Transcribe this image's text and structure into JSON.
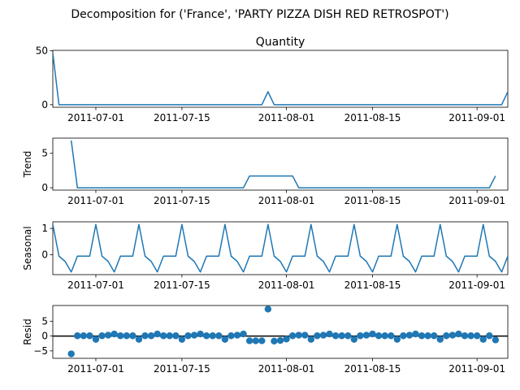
{
  "figure": {
    "title": "Decomposition for ('France', 'PARTY PIZZA DISH RED RETROSPOT')"
  },
  "chart_data": [
    {
      "type": "line",
      "key": "observed",
      "title": "Quantity",
      "ylabel": "",
      "color": "#1f77b4",
      "x_start": "2011-06-24",
      "x": [
        "2011-06-24",
        "2011-06-25",
        "2011-06-26",
        "2011-06-27",
        "2011-06-28",
        "2011-06-29",
        "2011-06-30",
        "2011-07-01",
        "2011-07-02",
        "2011-07-03",
        "2011-07-04",
        "2011-07-05",
        "2011-07-06",
        "2011-07-07",
        "2011-07-08",
        "2011-07-09",
        "2011-07-10",
        "2011-07-11",
        "2011-07-12",
        "2011-07-13",
        "2011-07-14",
        "2011-07-15",
        "2011-07-16",
        "2011-07-17",
        "2011-07-18",
        "2011-07-19",
        "2011-07-20",
        "2011-07-21",
        "2011-07-22",
        "2011-07-23",
        "2011-07-24",
        "2011-07-25",
        "2011-07-26",
        "2011-07-27",
        "2011-07-28",
        "2011-07-29",
        "2011-07-30",
        "2011-07-31",
        "2011-08-01",
        "2011-08-02",
        "2011-08-03",
        "2011-08-04",
        "2011-08-05",
        "2011-08-06",
        "2011-08-07",
        "2011-08-08",
        "2011-08-09",
        "2011-08-10",
        "2011-08-11",
        "2011-08-12",
        "2011-08-13",
        "2011-08-14",
        "2011-08-15",
        "2011-08-16",
        "2011-08-17",
        "2011-08-18",
        "2011-08-19",
        "2011-08-20",
        "2011-08-21",
        "2011-08-22",
        "2011-08-23",
        "2011-08-24",
        "2011-08-25",
        "2011-08-26",
        "2011-08-27",
        "2011-08-28",
        "2011-08-29",
        "2011-08-30",
        "2011-08-31",
        "2011-09-01",
        "2011-09-02",
        "2011-09-03",
        "2011-09-04",
        "2011-09-05",
        "2011-09-06"
      ],
      "values": [
        48,
        0,
        0,
        0,
        0,
        0,
        0,
        0,
        0,
        0,
        0,
        0,
        0,
        0,
        0,
        0,
        0,
        0,
        0,
        0,
        0,
        0,
        0,
        0,
        0,
        0,
        0,
        0,
        0,
        0,
        0,
        0,
        0,
        0,
        0,
        12,
        0,
        0,
        0,
        0,
        0,
        0,
        0,
        0,
        0,
        0,
        0,
        0,
        0,
        0,
        0,
        0,
        0,
        0,
        0,
        0,
        0,
        0,
        0,
        0,
        0,
        0,
        0,
        0,
        0,
        0,
        0,
        0,
        0,
        0,
        0,
        0,
        0,
        0,
        12
      ],
      "xlim": [
        "2011-06-24",
        "2011-09-06"
      ],
      "ylim": [
        -2.4,
        50.4
      ],
      "yticks": [
        0,
        50
      ],
      "xticks": [
        "2011-07-01",
        "2011-07-15",
        "2011-08-01",
        "2011-08-15",
        "2011-09-01"
      ],
      "grid": false
    },
    {
      "type": "line",
      "key": "trend",
      "title": "",
      "ylabel": "Trend",
      "color": "#1f77b4",
      "x_start": "2011-06-27",
      "values": [
        6.857,
        0,
        0,
        0,
        0,
        0,
        0,
        0,
        0,
        0,
        0,
        0,
        0,
        0,
        0,
        0,
        0,
        0,
        0,
        0,
        0,
        0,
        0,
        0,
        0,
        0,
        0,
        0,
        0,
        1.714,
        1.714,
        1.714,
        1.714,
        1.714,
        1.714,
        1.714,
        1.714,
        0,
        0,
        0,
        0,
        0,
        0,
        0,
        0,
        0,
        0,
        0,
        0,
        0,
        0,
        0,
        0,
        0,
        0,
        0,
        0,
        0,
        0,
        0,
        0,
        0,
        0,
        0,
        0,
        0,
        0,
        0,
        0,
        1.714
      ],
      "xlim": [
        "2011-06-24",
        "2011-09-06"
      ],
      "ylim": [
        -0.34,
        7.2
      ],
      "yticks": [
        0,
        5
      ],
      "xticks": [
        "2011-07-01",
        "2011-07-15",
        "2011-08-01",
        "2011-08-15",
        "2011-09-01"
      ],
      "grid": false
    },
    {
      "type": "line",
      "key": "seasonal",
      "title": "",
      "ylabel": "Seasonal",
      "color": "#1f77b4",
      "x_start": "2011-06-24",
      "values": [
        1.15,
        -0.05,
        -0.25,
        -0.65,
        -0.05,
        -0.05,
        -0.05,
        1.15,
        -0.05,
        -0.25,
        -0.65,
        -0.05,
        -0.05,
        -0.05,
        1.15,
        -0.05,
        -0.25,
        -0.65,
        -0.05,
        -0.05,
        -0.05,
        1.15,
        -0.05,
        -0.25,
        -0.65,
        -0.05,
        -0.05,
        -0.05,
        1.15,
        -0.05,
        -0.25,
        -0.65,
        -0.05,
        -0.05,
        -0.05,
        1.15,
        -0.05,
        -0.25,
        -0.65,
        -0.05,
        -0.05,
        -0.05,
        1.15,
        -0.05,
        -0.25,
        -0.65,
        -0.05,
        -0.05,
        -0.05,
        1.15,
        -0.05,
        -0.25,
        -0.65,
        -0.05,
        -0.05,
        -0.05,
        1.15,
        -0.05,
        -0.25,
        -0.65,
        -0.05,
        -0.05,
        -0.05,
        1.15,
        -0.05,
        -0.25,
        -0.65,
        -0.05,
        -0.05,
        -0.05,
        1.15,
        -0.05,
        -0.25,
        -0.65,
        -0.05,
        -0.05
      ],
      "xlim": [
        "2011-06-24",
        "2011-09-06"
      ],
      "ylim": [
        -0.75,
        1.25
      ],
      "yticks": [
        0,
        1
      ],
      "xticks": [
        "2011-07-01",
        "2011-07-15",
        "2011-08-01",
        "2011-08-15",
        "2011-09-01"
      ],
      "grid": false
    },
    {
      "type": "scatter",
      "key": "resid",
      "title": "",
      "ylabel": "Resid",
      "color": "#1f77b4",
      "x_start": "2011-06-27",
      "values": [
        -6.0,
        0.1,
        0.1,
        0.1,
        -1.1,
        0.1,
        0.3,
        0.7,
        0.1,
        0.1,
        0.1,
        -1.1,
        0.1,
        0.1,
        0.7,
        0.1,
        0.1,
        0.1,
        -1.1,
        0.1,
        0.3,
        0.7,
        0.1,
        0.1,
        0.1,
        -1.1,
        0.1,
        0.3,
        0.7,
        -1.6,
        -1.6,
        -1.6,
        9.1,
        -1.7,
        -1.5,
        -1.0,
        0.1,
        0.3,
        0.3,
        -1.1,
        0.1,
        0.3,
        0.7,
        0.1,
        0.1,
        0.1,
        -1.1,
        0.1,
        0.3,
        0.7,
        0.1,
        0.1,
        0.1,
        -1.1,
        0.1,
        0.3,
        0.7,
        0.1,
        0.1,
        0.1,
        -1.1,
        0.1,
        0.3,
        0.7,
        0.1,
        0.1,
        0.1,
        -1.1,
        0.1,
        -1.3
      ],
      "baseline": 0,
      "xlim": [
        "2011-06-24",
        "2011-09-06"
      ],
      "ylim": [
        -7.5,
        10.3
      ],
      "yticks": [
        -5,
        0,
        5
      ],
      "ytick_labels": [
        "−5",
        "0",
        "5"
      ],
      "xticks": [
        "2011-07-01",
        "2011-07-15",
        "2011-08-01",
        "2011-08-15",
        "2011-09-01"
      ],
      "grid": false
    }
  ]
}
